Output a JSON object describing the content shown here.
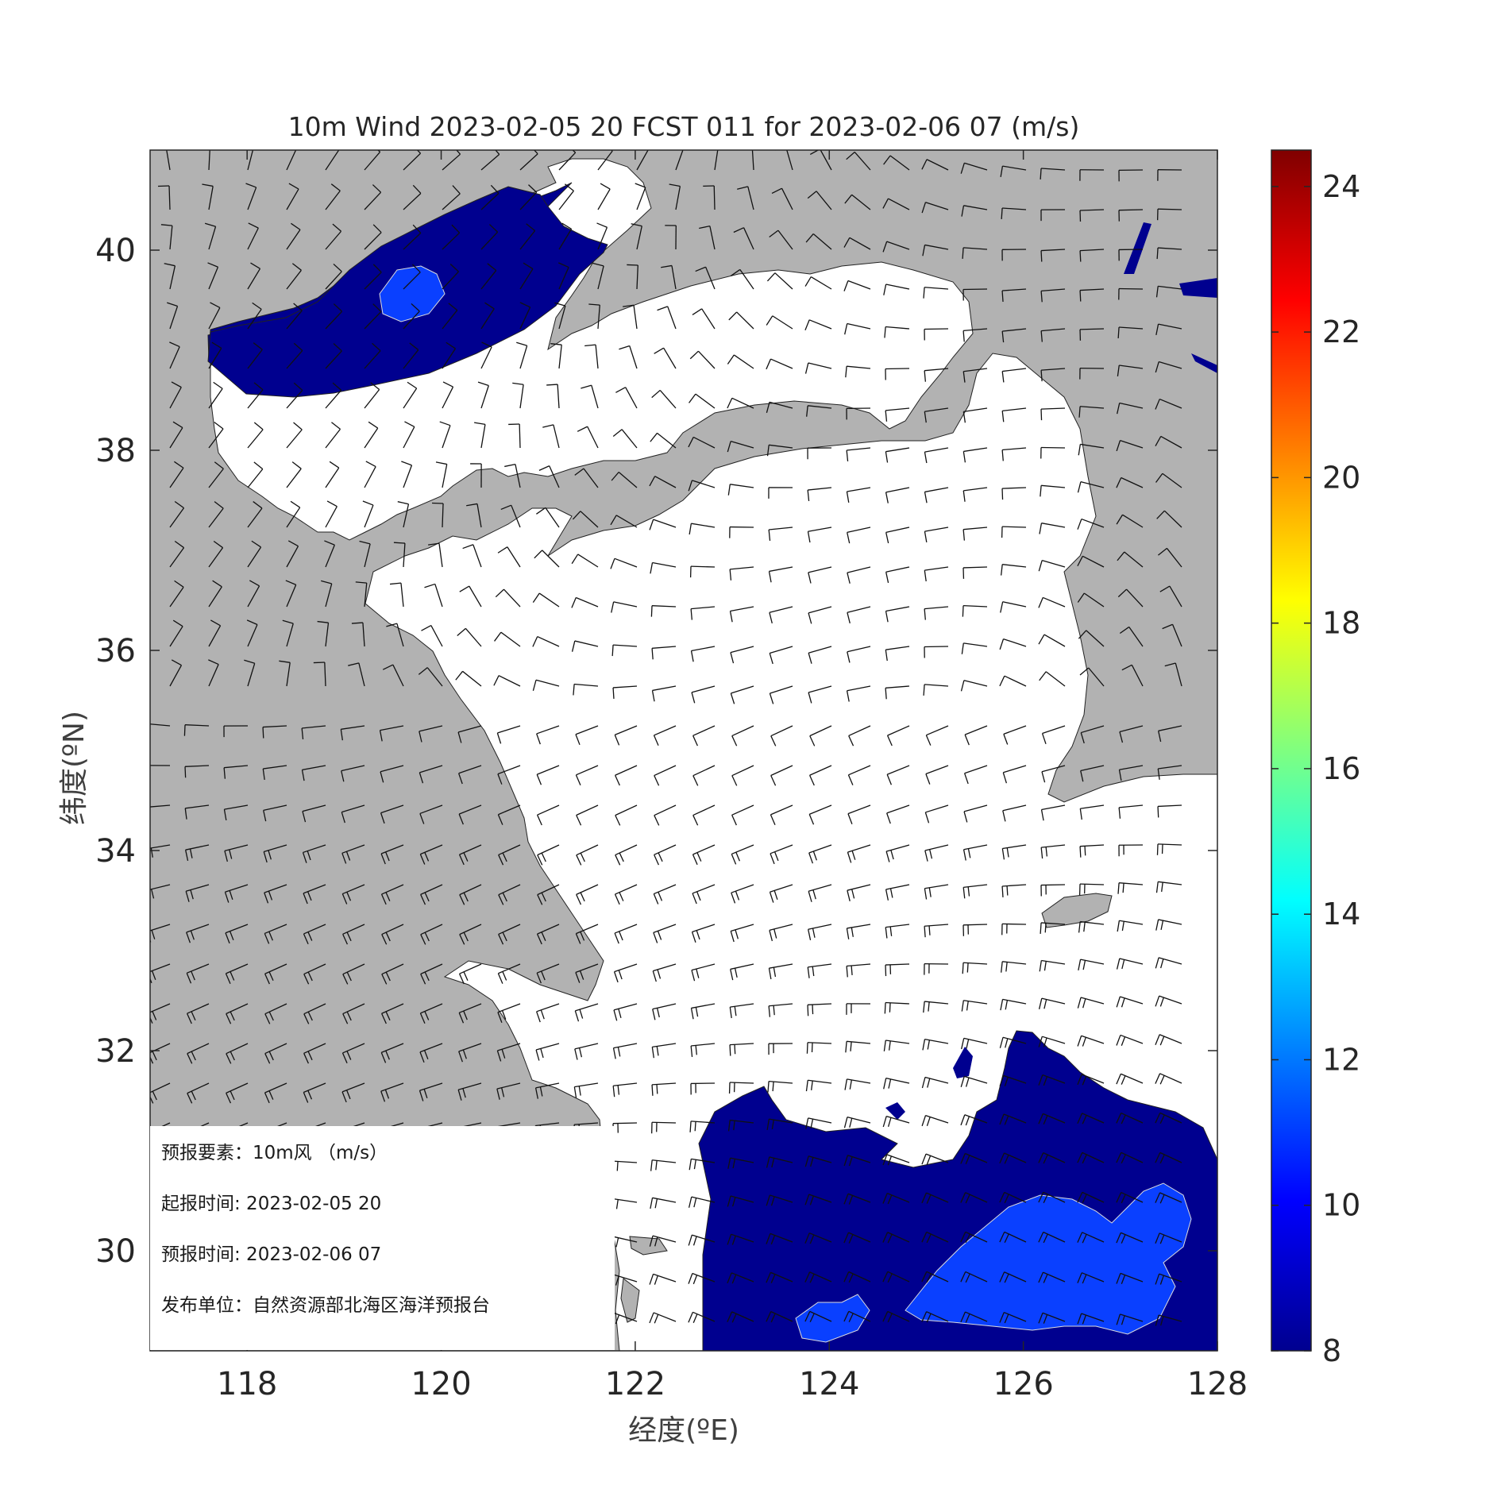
{
  "title": "10m Wind 2023-02-05 20 FCST 011 for 2023-02-06 07 (m/s)",
  "xlabel": "经度(ºE)",
  "ylabel": "纬度(ºN)",
  "x_ticks": [
    "118",
    "120",
    "122",
    "124",
    "126",
    "128"
  ],
  "y_ticks": [
    "40",
    "38",
    "36",
    "34",
    "32",
    "30"
  ],
  "colorbar_ticks": [
    "24",
    "22",
    "20",
    "18",
    "16",
    "14",
    "12",
    "10",
    "8"
  ],
  "info": {
    "element": "预报要素：10m风  （m/s）",
    "issue_time": "起报时间: 2023-02-05 20",
    "valid_time": "预报时间: 2023-02-06 07",
    "agency": "发布单位：自然资源部北海区海洋预报台"
  },
  "map": {
    "lon_range": [
      117,
      128
    ],
    "lat_range": [
      29,
      41
    ],
    "land_color": "#b2b2b2",
    "sea_color": "#ffffff",
    "wind_8_10_color": "#00008f",
    "wind_10_12_color": "#0a40ff",
    "colormap": "jet",
    "colorbar_range": [
      8,
      24.5
    ],
    "barb_style": "wind barbs"
  }
}
